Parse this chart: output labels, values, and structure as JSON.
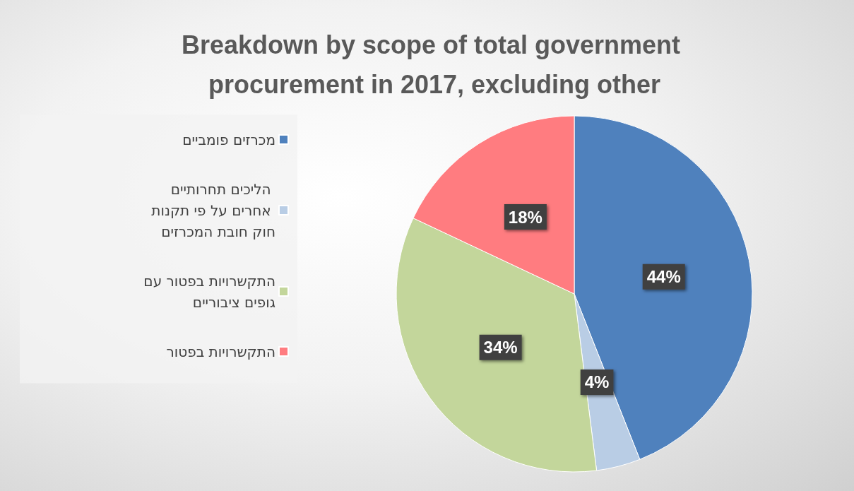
{
  "chart_data": {
    "type": "pie",
    "title": "Breakdown by scope of total government procurement in 2017, excluding other",
    "categories": [
      "מכרזים פומביים",
      "הליכים תחרותיים אחרים על פי תקנות חוק חובת המכרזים",
      "התקשרויות בפטור עם גופים ציבוריים",
      "התקשרויות בפטור"
    ],
    "values": [
      44,
      4,
      34,
      18
    ],
    "value_labels": [
      "44%",
      "4%",
      "34%",
      "18%"
    ],
    "colors": [
      "#4f81bd",
      "#b9cde5",
      "#c3d69b",
      "#ff7c80"
    ],
    "legend": "left"
  }
}
